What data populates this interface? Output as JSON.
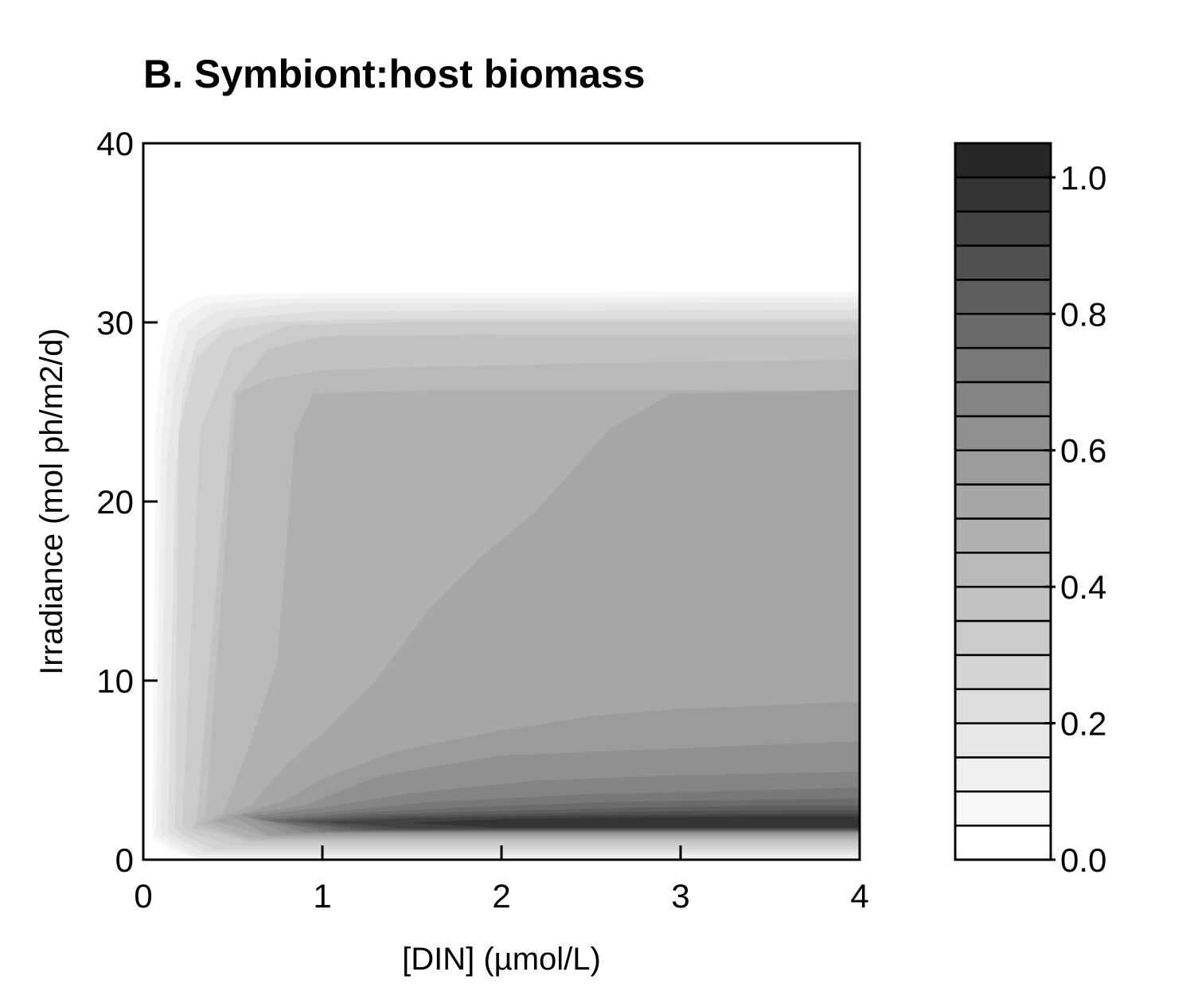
{
  "chart_data": {
    "type": "contour",
    "title": "B. Symbiont:host biomass",
    "xlabel": "[DIN] (µmol/L)",
    "ylabel": "Irradiance (mol ph/m2/d)",
    "xlim": [
      0,
      4
    ],
    "ylim": [
      0,
      40
    ],
    "x_ticks": [
      0,
      1,
      2,
      3,
      4
    ],
    "x_tick_labels": [
      "0",
      "1",
      "2",
      "3",
      "4"
    ],
    "y_ticks": [
      0,
      10,
      20,
      30,
      40
    ],
    "y_tick_labels": [
      "0",
      "10",
      "20",
      "30",
      "40"
    ],
    "grid": false,
    "colorbar": {
      "range": [
        0,
        1.05
      ],
      "levels": [
        0,
        0.05,
        0.1,
        0.15,
        0.2,
        0.25,
        0.3,
        0.35,
        0.4,
        0.45,
        0.5,
        0.55,
        0.6,
        0.65,
        0.7,
        0.75,
        0.8,
        0.85,
        0.9,
        0.95,
        1.0,
        1.05
      ],
      "tick_values": [
        0,
        0.2,
        0.4,
        0.6,
        0.8,
        1.0
      ],
      "tick_labels": [
        "0.0",
        "0.2",
        "0.4",
        "0.6",
        "0.8",
        "1.0"
      ],
      "colors": [
        "#ffffff",
        "#f7f7f7",
        "#efefef",
        "#e7e7e7",
        "#dddddd",
        "#d4d4d4",
        "#cbcbcb",
        "#c2c2c2",
        "#b9b9b9",
        "#b0b0b0",
        "#a6a6a6",
        "#9b9b9b",
        "#909090",
        "#848484",
        "#787878",
        "#6b6b6b",
        "#5e5e5e",
        "#505050",
        "#424242",
        "#343434",
        "#262626"
      ]
    },
    "regions": [
      {
        "level": 0.05,
        "polygon": [
          [
            0.05,
            1.2
          ],
          [
            0.07,
            24
          ],
          [
            0.1,
            28
          ],
          [
            0.15,
            30.5
          ],
          [
            0.3,
            31.4
          ],
          [
            0.6,
            31.6
          ],
          [
            4,
            31.7
          ],
          [
            4,
            0.05
          ],
          [
            0.3,
            0.05
          ],
          [
            0.15,
            0.6
          ]
        ]
      },
      {
        "level": 0.1,
        "polygon": [
          [
            0.07,
            1.4
          ],
          [
            0.1,
            23
          ],
          [
            0.14,
            27.5
          ],
          [
            0.2,
            30
          ],
          [
            0.35,
            31
          ],
          [
            0.7,
            31.3
          ],
          [
            4,
            31.4
          ],
          [
            4,
            0.15
          ],
          [
            0.3,
            0.15
          ],
          [
            0.15,
            0.8
          ]
        ]
      },
      {
        "level": 0.15,
        "polygon": [
          [
            0.1,
            1.5
          ],
          [
            0.13,
            22
          ],
          [
            0.18,
            27
          ],
          [
            0.25,
            29.5
          ],
          [
            0.4,
            30.6
          ],
          [
            0.8,
            31
          ],
          [
            4,
            31.1
          ],
          [
            4,
            0.3
          ],
          [
            0.3,
            0.3
          ],
          [
            0.17,
            1.0
          ]
        ]
      },
      {
        "level": 0.2,
        "polygon": [
          [
            0.14,
            1.6
          ],
          [
            0.18,
            21
          ],
          [
            0.22,
            26
          ],
          [
            0.3,
            29
          ],
          [
            0.5,
            30.2
          ],
          [
            1,
            30.6
          ],
          [
            4,
            30.7
          ],
          [
            4,
            0.45
          ],
          [
            0.35,
            0.45
          ],
          [
            0.2,
            1.2
          ]
        ]
      },
      {
        "level": 0.25,
        "polygon": [
          [
            0.18,
            1.8
          ],
          [
            0.2,
            24
          ],
          [
            0.3,
            28
          ],
          [
            0.45,
            29.5
          ],
          [
            0.7,
            30
          ],
          [
            1.5,
            30.2
          ],
          [
            4,
            30.2
          ],
          [
            4,
            0.6
          ],
          [
            0.4,
            0.6
          ],
          [
            0.22,
            1.4
          ]
        ]
      },
      {
        "level": 0.3,
        "polygon": [
          [
            0.22,
            2
          ],
          [
            0.32,
            24
          ],
          [
            0.5,
            28.5
          ],
          [
            0.8,
            29.8
          ],
          [
            1.5,
            30
          ],
          [
            4,
            30
          ],
          [
            4,
            0.8
          ],
          [
            0.5,
            0.8
          ],
          [
            0.25,
            1.6
          ]
        ]
      },
      {
        "level": 0.35,
        "polygon": [
          [
            0.3,
            2.2
          ],
          [
            0.5,
            26
          ],
          [
            0.7,
            28.5
          ],
          [
            1,
            29.2
          ],
          [
            2,
            29.3
          ],
          [
            4,
            29.3
          ],
          [
            4,
            1.0
          ],
          [
            0.6,
            1.0
          ],
          [
            0.28,
            1.8
          ]
        ]
      },
      {
        "level": 0.4,
        "polygon": [
          [
            0.35,
            2.4
          ],
          [
            0.52,
            26
          ],
          [
            0.7,
            26.8
          ],
          [
            1,
            27.3
          ],
          [
            1.6,
            27.5
          ],
          [
            2.5,
            27.7
          ],
          [
            4,
            27.9
          ],
          [
            4,
            1.1
          ],
          [
            0.6,
            1.1
          ],
          [
            0.3,
            2
          ]
        ]
      },
      {
        "level": 0.45,
        "polygon": [
          [
            0.45,
            2.6
          ],
          [
            0.6,
            6.5
          ],
          [
            0.75,
            11
          ],
          [
            0.85,
            23.8
          ],
          [
            0.95,
            26
          ],
          [
            1.6,
            26.2
          ],
          [
            2.5,
            26.2
          ],
          [
            4,
            26.2
          ],
          [
            4,
            1.2
          ],
          [
            0.6,
            1.2
          ],
          [
            0.35,
            2.1
          ]
        ]
      },
      {
        "level": 0.5,
        "polygon": [
          [
            0.6,
            3
          ],
          [
            0.8,
            5.3
          ],
          [
            1,
            7
          ],
          [
            1.3,
            10
          ],
          [
            1.6,
            14
          ],
          [
            1.9,
            17
          ],
          [
            2.2,
            19.5
          ],
          [
            2.6,
            24
          ],
          [
            2.95,
            26
          ],
          [
            4,
            26.2
          ],
          [
            4,
            1.3
          ],
          [
            0.7,
            1.3
          ],
          [
            0.4,
            2.2
          ]
        ]
      },
      {
        "level": 0.55,
        "polygon": [
          [
            0.8,
            3.3
          ],
          [
            1,
            4.5
          ],
          [
            1.4,
            6
          ],
          [
            2,
            7.2
          ],
          [
            2.5,
            8
          ],
          [
            3,
            8.4
          ],
          [
            4,
            8.8
          ],
          [
            4,
            1.4
          ],
          [
            0.7,
            1.4
          ],
          [
            0.5,
            2.4
          ]
        ]
      },
      {
        "level": 0.6,
        "polygon": [
          [
            0.9,
            3
          ],
          [
            1.3,
            4.6
          ],
          [
            2,
            5.8
          ],
          [
            3,
            6.2
          ],
          [
            4,
            6.6
          ],
          [
            4,
            1.5
          ],
          [
            0.8,
            1.5
          ],
          [
            0.55,
            2.5
          ]
        ]
      },
      {
        "level": 0.65,
        "polygon": [
          [
            1,
            2.9
          ],
          [
            1.5,
            3.7
          ],
          [
            2.2,
            4.4
          ],
          [
            3,
            4.7
          ],
          [
            4,
            4.9
          ],
          [
            4,
            1.55
          ],
          [
            0.9,
            1.55
          ],
          [
            0.6,
            2.4
          ]
        ]
      },
      {
        "level": 0.7,
        "polygon": [
          [
            1.1,
            2.7
          ],
          [
            1.6,
            3.2
          ],
          [
            2.4,
            3.6
          ],
          [
            3.2,
            3.8
          ],
          [
            4,
            4.0
          ],
          [
            4,
            1.6
          ],
          [
            1,
            1.6
          ],
          [
            0.65,
            2.3
          ]
        ]
      },
      {
        "level": 0.75,
        "polygon": [
          [
            1.2,
            2.6
          ],
          [
            1.8,
            2.9
          ],
          [
            2.6,
            3.2
          ],
          [
            3.3,
            3.3
          ],
          [
            4,
            3.4
          ],
          [
            4,
            1.6
          ],
          [
            1.1,
            1.6
          ],
          [
            0.7,
            2.2
          ]
        ]
      },
      {
        "level": 0.8,
        "polygon": [
          [
            1.3,
            2.5
          ],
          [
            2,
            2.7
          ],
          [
            2.8,
            2.9
          ],
          [
            3.5,
            3.0
          ],
          [
            4,
            3.0
          ],
          [
            4,
            1.65
          ],
          [
            1.2,
            1.65
          ],
          [
            0.8,
            2.2
          ]
        ]
      },
      {
        "level": 0.85,
        "polygon": [
          [
            1.4,
            2.4
          ],
          [
            2.2,
            2.55
          ],
          [
            3,
            2.7
          ],
          [
            4,
            2.75
          ],
          [
            4,
            1.7
          ],
          [
            1.3,
            1.7
          ],
          [
            0.9,
            2.15
          ]
        ]
      },
      {
        "level": 0.9,
        "polygon": [
          [
            1.5,
            2.3
          ],
          [
            2.4,
            2.45
          ],
          [
            3.2,
            2.5
          ],
          [
            4,
            2.55
          ],
          [
            4,
            1.75
          ],
          [
            1.5,
            1.75
          ],
          [
            1.05,
            2.1
          ]
        ]
      },
      {
        "level": 0.95,
        "polygon": [
          [
            2,
            2.25
          ],
          [
            2.8,
            2.35
          ],
          [
            3.5,
            2.4
          ],
          [
            4,
            2.4
          ],
          [
            4,
            1.8
          ],
          [
            2,
            1.8
          ],
          [
            1.5,
            2.05
          ]
        ]
      }
    ]
  }
}
